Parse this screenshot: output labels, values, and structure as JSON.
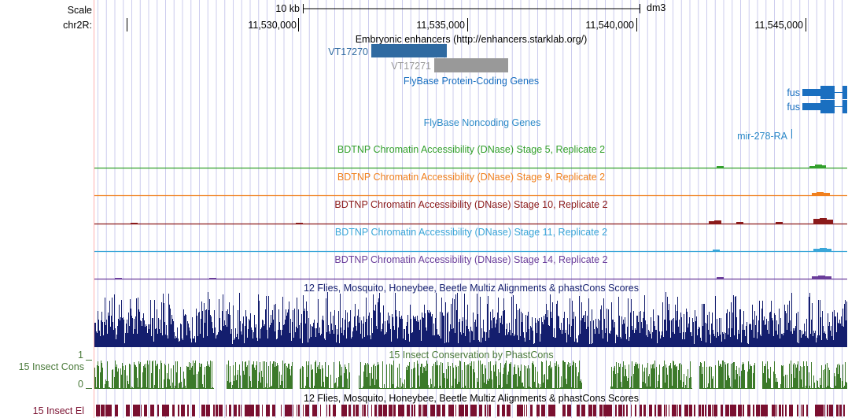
{
  "header": {
    "scale_label": "Scale",
    "scale_bar_label": "10 kb",
    "assembly": "dm3",
    "chrom_label": "chr2R:",
    "positions": [
      "11,530,000",
      "11,535,000",
      "11,540,000",
      "11,545,000"
    ]
  },
  "tracks": {
    "enhancers": {
      "title": "Embryonic enhancers (http://enhancers.starklab.org/)",
      "items": [
        {
          "name": "VT17270",
          "color": "#2f6aa1"
        },
        {
          "name": "VT17271",
          "color": "#999999"
        }
      ]
    },
    "flybase_coding": {
      "title": "FlyBase Protein-Coding Genes",
      "title_color": "#1a6fc0",
      "genes": [
        {
          "name": "fus"
        },
        {
          "name": "fus"
        }
      ]
    },
    "flybase_noncoding": {
      "title": "FlyBase Noncoding Genes",
      "title_color": "#2c8ac8",
      "genes": [
        {
          "name": "mir-278-RA"
        }
      ]
    },
    "dnase": [
      {
        "title": "BDTNP Chromatin Accessibility (DNase) Stage 5, Replicate 2",
        "color": "#33a02c"
      },
      {
        "title": "BDTNP Chromatin Accessibility (DNase) Stage 9, Replicate 2",
        "color": "#f0801e"
      },
      {
        "title": "BDTNP Chromatin Accessibility (DNase) Stage 10, Replicate 2",
        "color": "#8b1a1a"
      },
      {
        "title": "BDTNP Chromatin Accessibility (DNase) Stage 11, Replicate 2",
        "color": "#3aa6d8"
      },
      {
        "title": "BDTNP Chromatin Accessibility (DNase) Stage 14, Replicate 2",
        "color": "#6a3d9a"
      }
    ],
    "multiz": {
      "title": "12 Flies, Mosquito, Honeybee, Beetle Multiz Alignments & phastCons Scores",
      "color": "#141e6e"
    },
    "phastcons": {
      "title": "15 Insect Conservation by PhastCons",
      "side_label": "15 Insect Cons",
      "y_max": "1",
      "y_min": "0",
      "color": "#3c7a2a",
      "label_color": "#4a7a3a"
    },
    "elements": {
      "title": "12 Flies, Mosquito, Honeybee, Beetle Multiz Alignments & phastCons Scores",
      "side_label": "15 Insect El",
      "color": "#7a1030"
    }
  },
  "colors": {
    "grid_line": "#ccccee",
    "left_border": "#ffb0b0"
  }
}
